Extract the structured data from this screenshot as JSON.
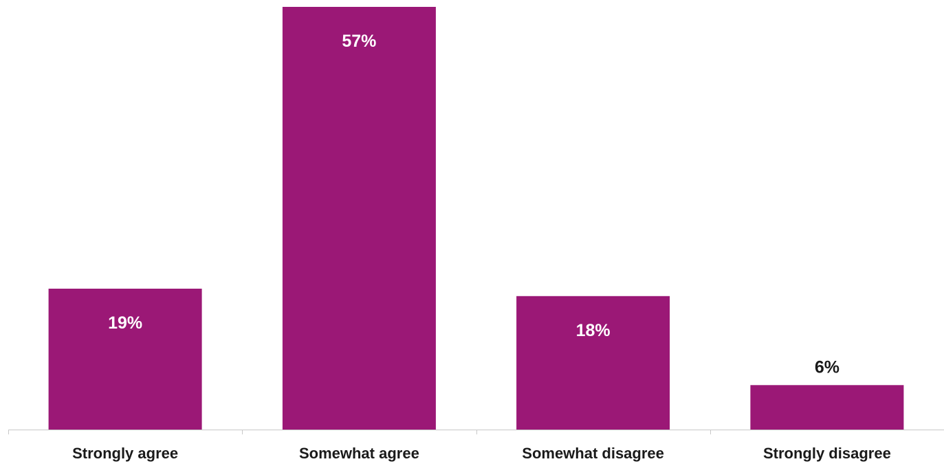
{
  "chart_data": {
    "type": "bar",
    "categories": [
      "Strongly agree",
      "Somewhat agree",
      "Somewhat disagree",
      "Strongly disagree"
    ],
    "values": [
      19,
      57,
      18,
      6
    ],
    "value_labels": [
      "19%",
      "57%",
      "18%",
      "6%"
    ],
    "unit": "%",
    "title": "",
    "xlabel": "",
    "ylabel": "",
    "ylim": [
      0,
      57
    ],
    "grid": false,
    "legend": "none",
    "colors": {
      "bar": "#9B1876",
      "label_inside": "#ffffff",
      "label_outside": "#1a1a1a",
      "category_text": "#1a1a1a",
      "axis": "#c8c8c8"
    }
  }
}
